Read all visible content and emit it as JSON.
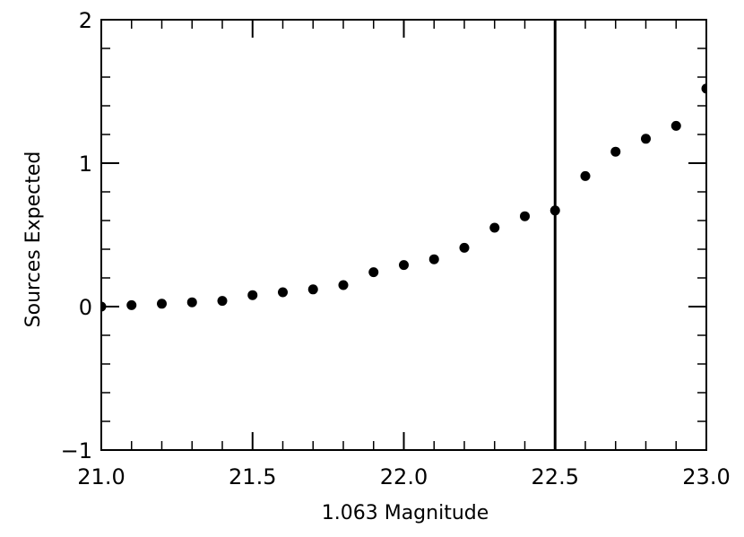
{
  "chart_data": {
    "type": "scatter",
    "xlabel": "1.063 Magnitude",
    "ylabel": "Sources Expected",
    "xlim": [
      21.0,
      23.0
    ],
    "ylim": [
      -1,
      2
    ],
    "x_ticks": [
      21.0,
      21.5,
      22.0,
      22.5,
      23.0
    ],
    "x_tick_labels": [
      "21.0",
      "21.5",
      "22.0",
      "22.5",
      "23.0"
    ],
    "y_ticks": [
      -1,
      0,
      1,
      2
    ],
    "y_tick_labels": [
      "−1",
      "0",
      "1",
      "2"
    ],
    "x_minor_step": 0.1,
    "y_minor_step": 0.2,
    "grid": false,
    "vertical_line_x": 22.5,
    "points": [
      {
        "x": 21.0,
        "y": 0.0
      },
      {
        "x": 21.1,
        "y": 0.01
      },
      {
        "x": 21.2,
        "y": 0.02
      },
      {
        "x": 21.3,
        "y": 0.03
      },
      {
        "x": 21.4,
        "y": 0.04
      },
      {
        "x": 21.5,
        "y": 0.08
      },
      {
        "x": 21.6,
        "y": 0.1
      },
      {
        "x": 21.7,
        "y": 0.12
      },
      {
        "x": 21.8,
        "y": 0.15
      },
      {
        "x": 21.9,
        "y": 0.24
      },
      {
        "x": 22.0,
        "y": 0.29
      },
      {
        "x": 22.1,
        "y": 0.33
      },
      {
        "x": 22.2,
        "y": 0.41
      },
      {
        "x": 22.3,
        "y": 0.55
      },
      {
        "x": 22.4,
        "y": 0.63
      },
      {
        "x": 22.5,
        "y": 0.67
      },
      {
        "x": 22.6,
        "y": 0.91
      },
      {
        "x": 22.7,
        "y": 1.08
      },
      {
        "x": 22.8,
        "y": 1.17
      },
      {
        "x": 22.9,
        "y": 1.26
      },
      {
        "x": 23.0,
        "y": 1.52
      }
    ]
  }
}
